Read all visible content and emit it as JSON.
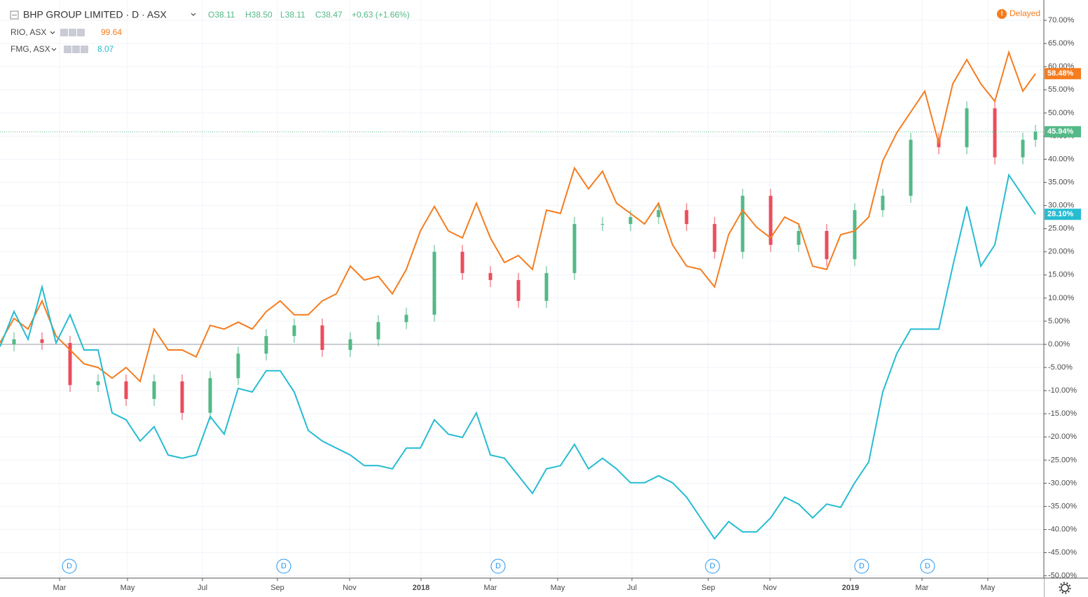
{
  "chart_data": {
    "type": "comparison",
    "xlim": [
      0,
      149
    ],
    "ylim": [
      -50.5,
      74.4
    ],
    "xticks": [
      {
        "value": 8.5,
        "label": "Mar"
      },
      {
        "value": 18.2,
        "label": "May"
      },
      {
        "value": 28.9,
        "label": "Jul"
      },
      {
        "value": 39.6,
        "label": "Sep"
      },
      {
        "value": 49.9,
        "label": "Nov"
      },
      {
        "value": 60.1,
        "label": "2018"
      },
      {
        "value": 70,
        "label": "Mar"
      },
      {
        "value": 79.6,
        "label": "May"
      },
      {
        "value": 90.2,
        "label": "Jul"
      },
      {
        "value": 101.1,
        "label": "Sep"
      },
      {
        "value": 109.9,
        "label": "Nov"
      },
      {
        "value": 121.4,
        "label": "2019"
      },
      {
        "value": 131.6,
        "label": "Mar"
      },
      {
        "value": 141,
        "label": "May"
      }
    ],
    "yticks": [
      {
        "value": 70,
        "label": "70.00%"
      },
      {
        "value": 65,
        "label": "65.00%"
      },
      {
        "value": 60,
        "label": "60.00%"
      },
      {
        "value": 55,
        "label": "55.00%"
      },
      {
        "value": 50,
        "label": "50.00%"
      },
      {
        "value": 45,
        "label": "45.00%"
      },
      {
        "value": 40,
        "label": "40.00%"
      },
      {
        "value": 35,
        "label": "35.00%"
      },
      {
        "value": 30,
        "label": "30.00%"
      },
      {
        "value": 25,
        "label": "25.00%"
      },
      {
        "value": 20,
        "label": "20.00%"
      },
      {
        "value": 15,
        "label": "15.00%"
      },
      {
        "value": 10,
        "label": "10.00%"
      },
      {
        "value": 5,
        "label": "5.00%"
      },
      {
        "value": 0,
        "label": "0.00%"
      },
      {
        "value": -5,
        "label": "-5.00%"
      },
      {
        "value": -10,
        "label": "-10.00%"
      },
      {
        "value": -15,
        "label": "-15.00%"
      },
      {
        "value": -20,
        "label": "-20.00%"
      },
      {
        "value": -25,
        "label": "-25.00%"
      },
      {
        "value": -30,
        "label": "-30.00%"
      },
      {
        "value": -35,
        "label": "-35.00%"
      },
      {
        "value": -40,
        "label": "-40.00%"
      },
      {
        "value": -45,
        "label": "-45.00%"
      },
      {
        "value": -50,
        "label": "-50.00%"
      }
    ],
    "grid": true,
    "status": "Delayed",
    "main": {
      "name": "BHP GROUP LIMITED · D · ASX",
      "ohlc_header": [
        "O38.11",
        "H38.50",
        "L38.11",
        "C38.47",
        "+0.63 (+1.66%)"
      ],
      "up_color": "#53b987",
      "down_color": "#eb4d5c",
      "last_label": "45.94%",
      "x": [
        2,
        6,
        10,
        14,
        18,
        22,
        26,
        30,
        34,
        38,
        42,
        46,
        50,
        54,
        58,
        62,
        66,
        70,
        74,
        78,
        82,
        86,
        90,
        94,
        98,
        102,
        106,
        110,
        114,
        118,
        122,
        126,
        130,
        134,
        138,
        142,
        146,
        147.8
      ],
      "open": [
        0,
        1.1,
        0.3,
        -8.8,
        -8.0,
        -11.8,
        -8.0,
        -14.8,
        -7.3,
        -2.0,
        1.8,
        4.1,
        -1.2,
        1.1,
        4.8,
        6.4,
        20.0,
        15.4,
        13.9,
        9.4,
        15.4,
        26.0,
        26.0,
        27.5,
        29.0,
        26.0,
        20.0,
        32.1,
        21.5,
        24.5,
        18.4,
        29.0,
        32.1,
        44.2,
        42.6,
        51.0,
        40.4,
        44.2
      ],
      "high": [
        2.6,
        2.6,
        1.8,
        -6.5,
        -6.5,
        -6.5,
        -6.5,
        -5.8,
        -0.5,
        3.3,
        5.6,
        5.6,
        2.6,
        6.3,
        7.9,
        21.5,
        21.5,
        16.9,
        15.4,
        16.9,
        27.5,
        27.5,
        29.0,
        30.5,
        30.5,
        27.5,
        33.6,
        33.6,
        26.0,
        26.0,
        30.5,
        33.6,
        45.7,
        45.7,
        52.5,
        52.5,
        45.7,
        47.4
      ],
      "low": [
        -1.5,
        -1.2,
        -10.3,
        -10.3,
        -13.3,
        -13.3,
        -16.3,
        -16.3,
        -8.8,
        -3.5,
        0.3,
        -2.7,
        -2.7,
        -0.4,
        3.3,
        4.9,
        13.9,
        12.4,
        7.9,
        7.9,
        13.9,
        24.5,
        24.5,
        26.0,
        24.5,
        18.5,
        18.5,
        20.0,
        20.0,
        16.9,
        16.9,
        27.5,
        30.6,
        41.1,
        41.1,
        38.9,
        38.9,
        42.7
      ],
      "close": [
        1.1,
        0.3,
        -8.8,
        -8.0,
        -11.8,
        -8.0,
        -14.8,
        -7.3,
        -2.0,
        1.8,
        4.1,
        -1.2,
        1.1,
        4.8,
        6.4,
        20.0,
        15.4,
        13.9,
        9.4,
        15.4,
        26.0,
        26.0,
        27.5,
        29.0,
        26.0,
        20.0,
        32.1,
        21.5,
        24.5,
        18.4,
        29.0,
        32.1,
        44.2,
        42.6,
        51.0,
        40.4,
        44.2,
        45.94
      ]
    },
    "x": [
      0,
      2,
      4,
      6,
      8,
      10,
      12,
      14,
      16,
      18,
      20,
      22,
      24,
      26,
      28,
      30,
      32,
      34,
      36,
      38,
      40,
      42,
      44,
      46,
      48,
      50,
      52,
      54,
      56,
      58,
      60,
      62,
      64,
      66,
      68,
      70,
      72,
      74,
      76,
      78,
      80,
      82,
      84,
      86,
      88,
      90,
      92,
      94,
      96,
      98,
      100,
      102,
      104,
      106,
      108,
      110,
      112,
      114,
      116,
      118,
      120,
      122,
      124,
      126,
      128,
      130,
      132,
      134,
      136,
      138,
      140,
      142,
      144,
      146,
      147.8
    ],
    "series": [
      {
        "name": "RIO, ASX",
        "price_label": "99.64",
        "color": "#f57c1f",
        "last_label": "58.48%",
        "values": [
          0.3,
          5.6,
          3.3,
          9.4,
          1.8,
          -1.2,
          -4.2,
          -5.0,
          -7.3,
          -5.0,
          -8.0,
          3.3,
          -1.2,
          -1.2,
          -2.7,
          4.1,
          3.3,
          4.8,
          3.3,
          7.1,
          9.4,
          6.4,
          6.4,
          9.4,
          10.9,
          16.9,
          13.9,
          14.7,
          10.9,
          16.2,
          24.5,
          29.8,
          24.5,
          23.0,
          30.5,
          23.0,
          17.7,
          19.2,
          16.2,
          29.0,
          28.3,
          38.1,
          33.6,
          37.4,
          30.5,
          28.3,
          26.0,
          30.5,
          21.5,
          16.9,
          16.2,
          12.4,
          23.7,
          29.0,
          25.3,
          23.0,
          27.5,
          26.0,
          16.9,
          16.2,
          23.7,
          24.5,
          27.5,
          39.6,
          45.7,
          50.2,
          54.7,
          43.4,
          56.3,
          61.5,
          56.3,
          52.5,
          63.1,
          54.7,
          58.48
        ]
      },
      {
        "name": "FMG, ASX",
        "price_label": "8.07",
        "color": "#26bcd2",
        "last_label": "28.10%",
        "values": [
          -0.5,
          7.1,
          1.1,
          12.4,
          0.3,
          6.4,
          -1.2,
          -1.2,
          -14.8,
          -16.3,
          -20.9,
          -17.8,
          -23.9,
          -24.6,
          -23.9,
          -15.6,
          -19.4,
          -9.5,
          -10.3,
          -5.7,
          -5.7,
          -10.3,
          -18.6,
          -20.9,
          -22.4,
          -23.9,
          -26.2,
          -26.2,
          -26.9,
          -22.4,
          -22.4,
          -16.3,
          -19.4,
          -20.1,
          -14.8,
          -23.9,
          -24.6,
          -28.4,
          -32.2,
          -26.9,
          -26.2,
          -21.6,
          -26.9,
          -24.6,
          -26.9,
          -29.9,
          -29.9,
          -28.4,
          -29.9,
          -33.0,
          -37.5,
          -42.0,
          -38.3,
          -40.5,
          -40.5,
          -37.5,
          -33.0,
          -34.5,
          -37.5,
          -34.5,
          -35.2,
          -29.9,
          -25.4,
          -10.3,
          -2.0,
          3.3,
          3.3,
          3.3,
          16.9,
          29.8,
          16.9,
          21.5,
          36.6,
          32.1,
          28.1
        ]
      }
    ],
    "dividends": {
      "label": "D",
      "x": [
        9.9,
        40.5,
        71.1,
        101.7,
        123,
        132.4
      ]
    }
  }
}
